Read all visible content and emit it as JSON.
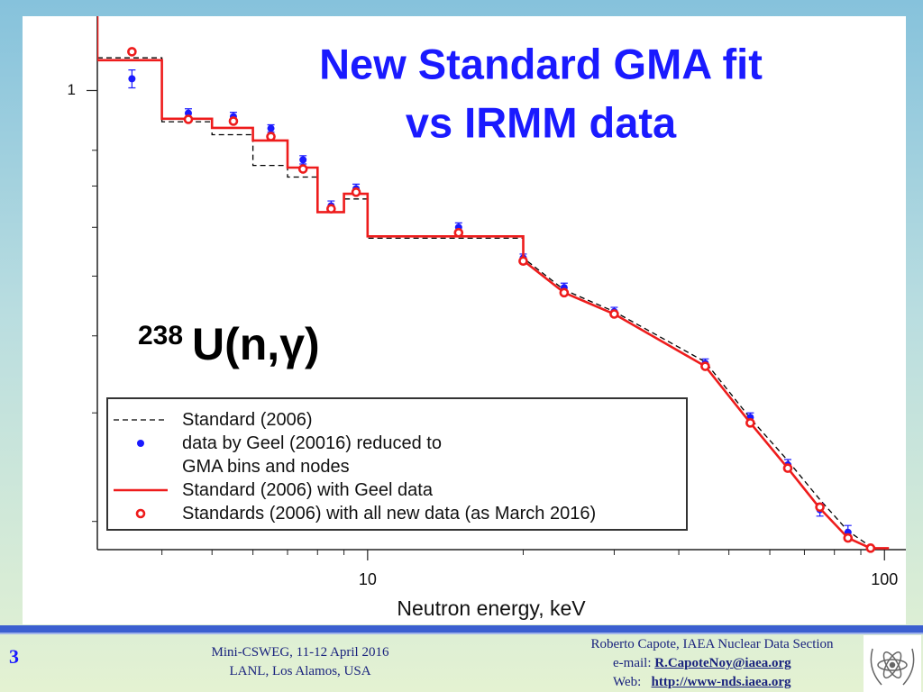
{
  "chart_data": {
    "type": "line",
    "title": [
      "New Standard GMA fit",
      "vs IRMM data"
    ],
    "annotation": {
      "mass": "238",
      "text": "U(n,γ)"
    },
    "xlabel": "Neutron energy, keV",
    "xscale": "log",
    "yscale": "log",
    "xlim": [
      3,
      110
    ],
    "ylim": [
      0.18,
      1.32
    ],
    "xticks": [
      10,
      100
    ],
    "xminor_ticks": [
      4,
      5,
      6,
      7,
      8,
      9,
      20,
      30,
      40,
      50,
      60,
      70,
      80,
      90
    ],
    "yticks": [
      1
    ],
    "yminor_ticks": [
      0.8,
      0.7,
      0.6,
      0.5,
      0.4,
      0.3,
      0.2
    ],
    "series": [
      {
        "name": "Standard (2006)",
        "color": "#000000",
        "kind": "line",
        "dashed": true,
        "x": [
          3,
          4,
          4,
          5,
          5,
          6,
          6,
          7,
          7,
          8,
          8,
          9,
          9,
          10,
          10,
          20,
          20,
          24,
          30,
          45,
          55,
          65,
          75,
          85,
          94
        ],
        "values": [
          1.13,
          1.13,
          0.89,
          0.89,
          0.848,
          0.848,
          0.756,
          0.756,
          0.724,
          0.724,
          0.635,
          0.635,
          0.667,
          0.667,
          0.576,
          0.576,
          0.535,
          0.475,
          0.438,
          0.363,
          0.294,
          0.251,
          0.217,
          0.193,
          0.182
        ]
      },
      {
        "name": "data by Geel (20016) reduced to GMA bins and nodes",
        "color": "#1a1aff",
        "kind": "points",
        "x": [
          3.5,
          4.5,
          5.5,
          6.5,
          7.5,
          8.5,
          9.5,
          15,
          20,
          24,
          30,
          45,
          55,
          65,
          75,
          85
        ],
        "values": [
          1.045,
          0.919,
          0.907,
          0.868,
          0.772,
          0.65,
          0.693,
          0.6,
          0.535,
          0.479,
          0.438,
          0.361,
          0.295,
          0.247,
          0.209,
          0.192
        ],
        "errors": [
          0.035,
          0.015,
          0.015,
          0.012,
          0.012,
          0.012,
          0.012,
          0.01,
          0.008,
          0.008,
          0.007,
          0.006,
          0.005,
          0.005,
          0.005,
          0.005
        ]
      },
      {
        "name": "Standard (2006) with Geel data",
        "color": "#ee1c1c",
        "kind": "line",
        "dashed": false,
        "x": [
          3,
          3,
          4,
          4,
          5,
          5,
          6,
          6,
          7,
          7,
          8,
          8,
          9,
          9,
          10,
          10,
          20,
          20,
          24,
          30,
          45,
          55,
          65,
          75,
          85,
          94,
          102
        ],
        "values": [
          1.32,
          1.12,
          1.12,
          0.9,
          0.9,
          0.87,
          0.87,
          0.83,
          0.83,
          0.75,
          0.75,
          0.635,
          0.635,
          0.68,
          0.68,
          0.58,
          0.58,
          0.53,
          0.47,
          0.434,
          0.357,
          0.289,
          0.244,
          0.21,
          0.188,
          0.181,
          0.181
        ]
      },
      {
        "name": "Standards (2006) with all new data (as March 2016)",
        "color": "#ee1c1c",
        "kind": "open-points",
        "x": [
          3.5,
          4.5,
          5.5,
          6.5,
          7.5,
          8.5,
          9.5,
          15,
          20,
          24,
          30,
          45,
          55,
          65,
          75,
          85,
          94
        ],
        "values": [
          1.156,
          0.898,
          0.892,
          0.842,
          0.746,
          0.643,
          0.684,
          0.588,
          0.529,
          0.47,
          0.434,
          0.357,
          0.289,
          0.244,
          0.211,
          0.188,
          0.181
        ]
      }
    ]
  },
  "footer": {
    "page": "3",
    "event": [
      "Mini-CSWEG, 11-12 April 2016",
      "LANL, Los Alamos, USA"
    ],
    "author": "Roberto Capote, IAEA Nuclear Data Section",
    "email_label": "e-mail:",
    "email": "R.CapoteNoy@iaea.org",
    "web_label": "Web:",
    "web": "http://www-nds.iaea.org"
  }
}
